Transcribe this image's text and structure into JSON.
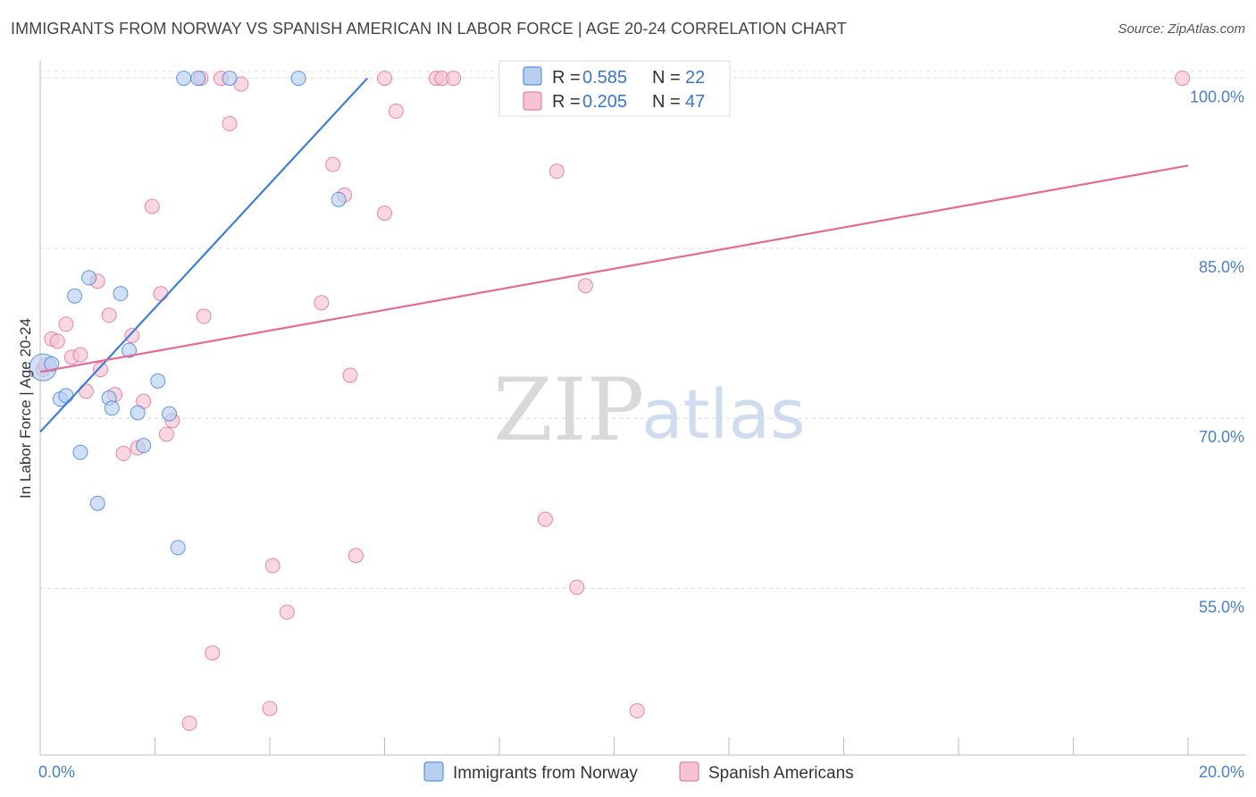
{
  "title": "IMMIGRANTS FROM NORWAY VS SPANISH AMERICAN IN LABOR FORCE | AGE 20-24 CORRELATION CHART",
  "source": "Source: ZipAtlas.com",
  "watermark": {
    "zip": "ZIP",
    "atlas": "atlas"
  },
  "colors": {
    "blue": "#3f7fd8",
    "blue_fill": "#b9cff2",
    "pink": "#e36b96",
    "pink_fill": "#f7c3d3",
    "tick_label": "#4a7fc9"
  },
  "legend": {
    "r_label": "R =",
    "n_label": "N =",
    "series": [
      {
        "r": "0.585",
        "n": "22"
      },
      {
        "r": "0.205",
        "n": "47"
      }
    ]
  },
  "chart_data": {
    "type": "scatter",
    "title": "IMMIGRANTS FROM NORWAY VS SPANISH AMERICAN IN LABOR FORCE | AGE 20-24 CORRELATION CHART",
    "xlabel": "",
    "ylabel": "In Labor Force | Age 20-24",
    "xlim": [
      0,
      20
    ],
    "ylim": [
      40.3,
      100.6
    ],
    "x_tick_labels": [
      "0.0%",
      "20.0%"
    ],
    "y_ticks": [
      55,
      70,
      85,
      100
    ],
    "y_tick_labels": [
      "55.0%",
      "70.0%",
      "85.0%",
      "100.0%"
    ],
    "grid": true,
    "series": [
      {
        "name": "Immigrants from Norway",
        "color": "#3f7fd8",
        "trend": {
          "x": [
            0.0,
            5.7
          ],
          "y": [
            68.8,
            100.0
          ]
        },
        "points": [
          {
            "x": 0.05,
            "y": 74.5
          },
          {
            "x": 0.2,
            "y": 74.8
          },
          {
            "x": 0.35,
            "y": 71.7
          },
          {
            "x": 0.45,
            "y": 72.0
          },
          {
            "x": 0.7,
            "y": 67.0
          },
          {
            "x": 0.85,
            "y": 82.4
          },
          {
            "x": 0.6,
            "y": 80.8
          },
          {
            "x": 1.0,
            "y": 62.5
          },
          {
            "x": 1.2,
            "y": 71.8
          },
          {
            "x": 1.25,
            "y": 70.9
          },
          {
            "x": 1.4,
            "y": 81.0
          },
          {
            "x": 1.55,
            "y": 76.0
          },
          {
            "x": 1.7,
            "y": 70.5
          },
          {
            "x": 1.8,
            "y": 67.6
          },
          {
            "x": 2.05,
            "y": 73.3
          },
          {
            "x": 2.25,
            "y": 70.4
          },
          {
            "x": 2.4,
            "y": 58.6
          },
          {
            "x": 2.5,
            "y": 100.0
          },
          {
            "x": 2.75,
            "y": 100.0
          },
          {
            "x": 3.3,
            "y": 100.0
          },
          {
            "x": 4.5,
            "y": 100.0
          },
          {
            "x": 5.2,
            "y": 89.3
          }
        ]
      },
      {
        "name": "Spanish Americans",
        "color": "#e36b96",
        "trend": {
          "x": [
            0.0,
            20.0
          ],
          "y": [
            74.1,
            92.3
          ]
        },
        "points": [
          {
            "x": 0.05,
            "y": 74.3
          },
          {
            "x": 0.2,
            "y": 77.0
          },
          {
            "x": 0.3,
            "y": 76.8
          },
          {
            "x": 0.45,
            "y": 78.3
          },
          {
            "x": 0.55,
            "y": 75.4
          },
          {
            "x": 0.7,
            "y": 75.6
          },
          {
            "x": 0.8,
            "y": 72.4
          },
          {
            "x": 1.0,
            "y": 82.1
          },
          {
            "x": 1.05,
            "y": 74.3
          },
          {
            "x": 1.2,
            "y": 79.1
          },
          {
            "x": 1.3,
            "y": 72.1
          },
          {
            "x": 1.45,
            "y": 66.9
          },
          {
            "x": 1.6,
            "y": 77.3
          },
          {
            "x": 1.7,
            "y": 67.4
          },
          {
            "x": 1.8,
            "y": 71.5
          },
          {
            "x": 1.95,
            "y": 88.7
          },
          {
            "x": 2.1,
            "y": 81.0
          },
          {
            "x": 2.2,
            "y": 68.6
          },
          {
            "x": 2.3,
            "y": 69.8
          },
          {
            "x": 2.6,
            "y": 43.1
          },
          {
            "x": 2.8,
            "y": 100.0
          },
          {
            "x": 2.85,
            "y": 79.0
          },
          {
            "x": 3.0,
            "y": 49.3
          },
          {
            "x": 3.15,
            "y": 100.0
          },
          {
            "x": 3.3,
            "y": 96.0
          },
          {
            "x": 3.5,
            "y": 99.5
          },
          {
            "x": 4.0,
            "y": 44.4
          },
          {
            "x": 4.05,
            "y": 57.0
          },
          {
            "x": 4.3,
            "y": 52.9
          },
          {
            "x": 4.9,
            "y": 80.2
          },
          {
            "x": 5.1,
            "y": 92.4
          },
          {
            "x": 5.3,
            "y": 89.7
          },
          {
            "x": 5.4,
            "y": 73.8
          },
          {
            "x": 5.5,
            "y": 57.9
          },
          {
            "x": 6.0,
            "y": 88.1
          },
          {
            "x": 6.0,
            "y": 100.0
          },
          {
            "x": 6.2,
            "y": 97.1
          },
          {
            "x": 6.9,
            "y": 100.0
          },
          {
            "x": 7.0,
            "y": 100.0
          },
          {
            "x": 7.2,
            "y": 100.0
          },
          {
            "x": 8.8,
            "y": 61.1
          },
          {
            "x": 9.0,
            "y": 91.8
          },
          {
            "x": 9.35,
            "y": 55.1
          },
          {
            "x": 9.5,
            "y": 81.7
          },
          {
            "x": 10.4,
            "y": 44.2
          },
          {
            "x": 19.9,
            "y": 100.0
          },
          {
            "x": 0.1,
            "y": 74.7
          }
        ]
      }
    ]
  }
}
